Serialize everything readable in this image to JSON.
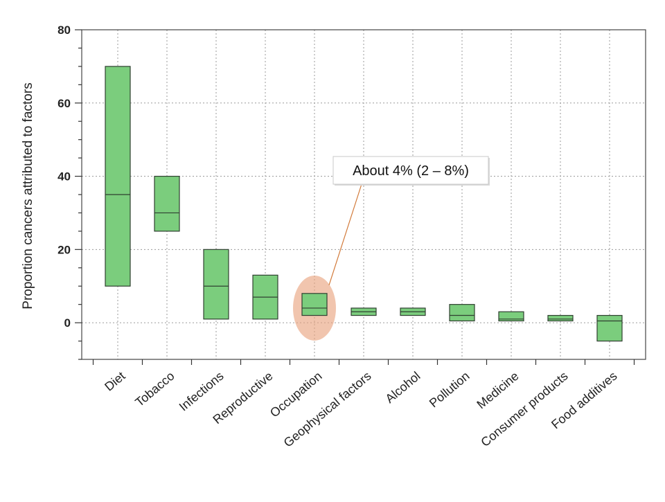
{
  "chart_data": {
    "type": "box",
    "ylabel": "Proportion cancers attributed to factors",
    "ylim": [
      -10,
      80
    ],
    "yticks": [
      0,
      20,
      40,
      60,
      80
    ],
    "grid": true,
    "categories": [
      "Diet",
      "Tobacco",
      "Infections",
      "Reproductive",
      "Occupation",
      "Geophysical factors",
      "Alcohol",
      "Pollution",
      "Medicine",
      "Consumer products",
      "Food additives"
    ],
    "boxes": [
      {
        "low": 10,
        "mid": 35,
        "high": 70
      },
      {
        "low": 25,
        "mid": 30,
        "high": 40
      },
      {
        "low": 1,
        "mid": 10,
        "high": 20
      },
      {
        "low": 1,
        "mid": 7,
        "high": 13
      },
      {
        "low": 2,
        "mid": 4,
        "high": 8
      },
      {
        "low": 2,
        "mid": 3,
        "high": 4
      },
      {
        "low": 2,
        "mid": 3,
        "high": 4
      },
      {
        "low": 0.5,
        "mid": 2,
        "high": 5
      },
      {
        "low": 0.5,
        "mid": 1,
        "high": 3
      },
      {
        "low": 0.5,
        "mid": 1,
        "high": 2
      },
      {
        "low": -5,
        "mid": 0.5,
        "high": 2
      }
    ],
    "annotations": [
      {
        "text": "About 4% (2 – 8%)",
        "category": "Occupation"
      }
    ],
    "colors": {
      "box_fill": "#7bcd7d",
      "box_stroke": "#2f3f30",
      "highlight": "#e8a27c",
      "callout_line": "#d27a3a"
    }
  }
}
